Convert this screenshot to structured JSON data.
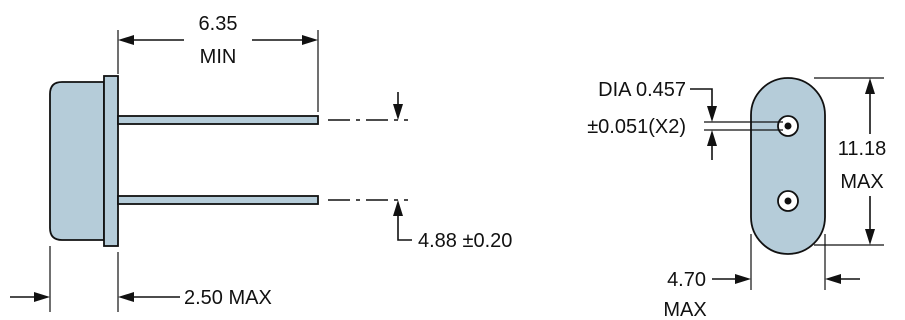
{
  "colors": {
    "body_fill": "#b5ccd9",
    "line": "#111111",
    "background": "#ffffff"
  },
  "labels": {
    "lead_length_value": "6.35",
    "lead_length_qualifier": "MIN",
    "body_thickness": "2.50 MAX",
    "lead_spacing": "4.88 ±0.20",
    "lead_diameter_line1": "DIA 0.457",
    "lead_diameter_line2": "±0.051(X2)",
    "height_value": "11.18",
    "height_qualifier": "MAX",
    "width_value": "4.70",
    "width_qualifier": "MAX"
  }
}
